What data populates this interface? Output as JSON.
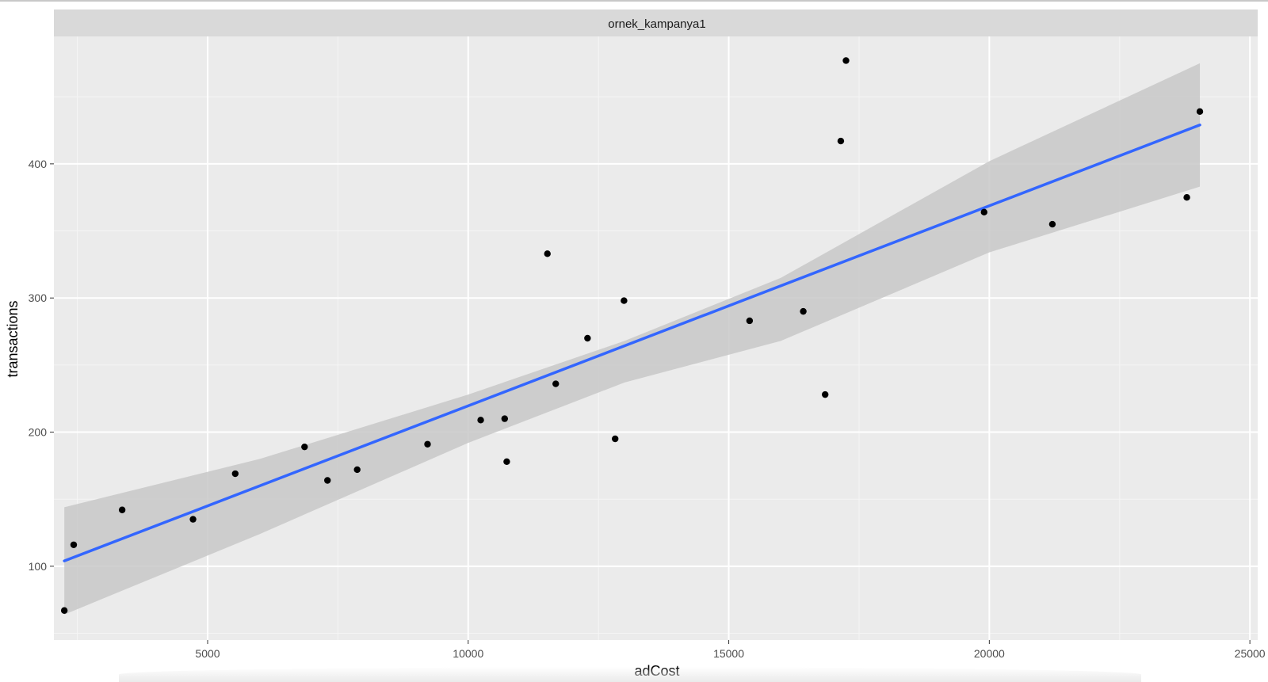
{
  "chart_data": {
    "type": "scatter",
    "facet_label": "ornek_kampanya1",
    "xlabel": "adCost",
    "ylabel": "transactions",
    "xlim": [
      1500,
      25200
    ],
    "ylim": [
      45,
      495
    ],
    "x_ticks": [
      5000,
      10000,
      15000,
      20000,
      25000
    ],
    "x_tick_labels": [
      "5000",
      "10000",
      "15000",
      "20000",
      "25000"
    ],
    "y_ticks": [
      100,
      200,
      300,
      400
    ],
    "y_tick_labels": [
      "100",
      "200",
      "300",
      "400"
    ],
    "grid": true,
    "legend": "none",
    "points": [
      {
        "x": 2250,
        "y": 67
      },
      {
        "x": 2430,
        "y": 116
      },
      {
        "x": 3360,
        "y": 142
      },
      {
        "x": 4720,
        "y": 135
      },
      {
        "x": 5530,
        "y": 169
      },
      {
        "x": 6860,
        "y": 189
      },
      {
        "x": 7300,
        "y": 164
      },
      {
        "x": 7870,
        "y": 172
      },
      {
        "x": 9220,
        "y": 191
      },
      {
        "x": 10240,
        "y": 209
      },
      {
        "x": 10700,
        "y": 210
      },
      {
        "x": 10740,
        "y": 178
      },
      {
        "x": 11520,
        "y": 333
      },
      {
        "x": 11680,
        "y": 236
      },
      {
        "x": 12290,
        "y": 270
      },
      {
        "x": 12820,
        "y": 195
      },
      {
        "x": 12990,
        "y": 298
      },
      {
        "x": 15400,
        "y": 283
      },
      {
        "x": 16430,
        "y": 290
      },
      {
        "x": 16850,
        "y": 228
      },
      {
        "x": 17150,
        "y": 417
      },
      {
        "x": 17250,
        "y": 477
      },
      {
        "x": 19900,
        "y": 364
      },
      {
        "x": 21210,
        "y": 355
      },
      {
        "x": 23790,
        "y": 375
      },
      {
        "x": 24040,
        "y": 439
      }
    ],
    "fit_line": {
      "x": [
        2250,
        24040
      ],
      "y": [
        104,
        429
      ]
    },
    "confidence_band": {
      "x": [
        2250,
        6000,
        10000,
        13000,
        16000,
        20000,
        24040
      ],
      "upper": [
        144,
        180,
        228,
        268,
        315,
        402,
        475
      ],
      "lower": [
        64,
        124,
        192,
        237,
        268,
        334,
        383
      ]
    },
    "colors": {
      "panel": "#ebebeb",
      "grid_major": "#ffffff",
      "grid_minor": "#f5f5f5",
      "strip": "#d9d9d9",
      "fit_line": "#3366ff",
      "band": "#c8c8c8",
      "points": "#000000"
    }
  }
}
